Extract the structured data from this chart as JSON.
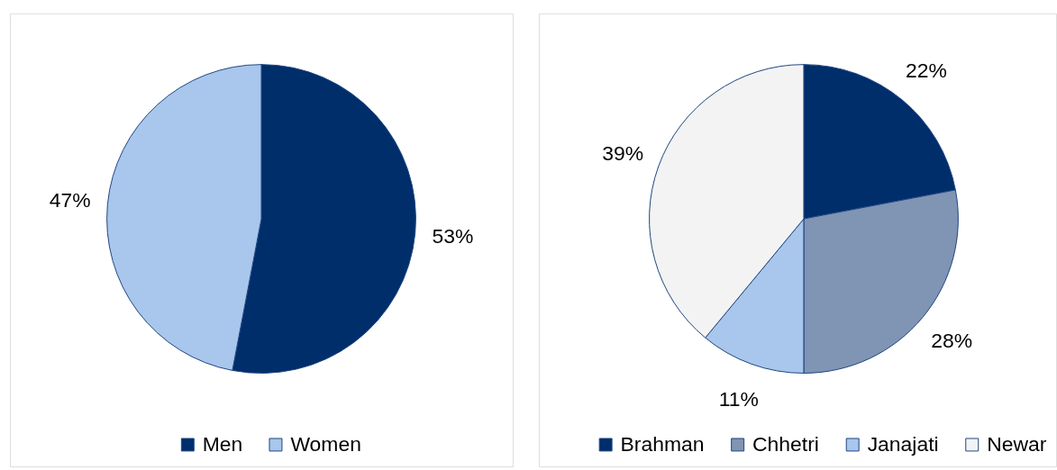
{
  "chart_data": [
    {
      "type": "pie",
      "categories": [
        "Men",
        "Women"
      ],
      "values": [
        53,
        47
      ],
      "colors": [
        "#002e6b",
        "#a9c6ed"
      ],
      "value_labels": [
        "53%",
        "47%"
      ],
      "legend": "bottom"
    },
    {
      "type": "pie",
      "categories": [
        "Brahman",
        "Chhetri",
        "Janajati",
        "Newar"
      ],
      "values": [
        22,
        28,
        11,
        39
      ],
      "colors": [
        "#002e6b",
        "#8094b4",
        "#a9c6ed",
        "#f3f3f3"
      ],
      "value_labels": [
        "22%",
        "28%",
        "11%",
        "39%"
      ],
      "legend": "bottom"
    }
  ]
}
